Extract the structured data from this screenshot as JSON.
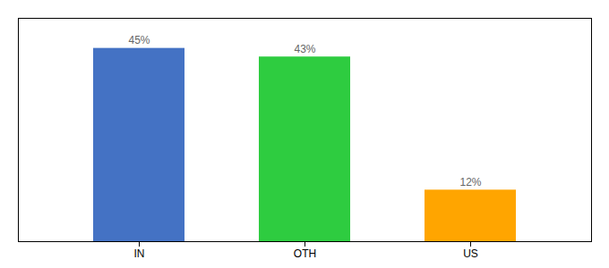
{
  "chart_data": {
    "type": "bar",
    "categories": [
      "IN",
      "OTH",
      "US"
    ],
    "values": [
      45,
      43,
      12
    ],
    "colors": [
      "#4472C4",
      "#2ECC40",
      "#FFA500"
    ],
    "data_labels": true,
    "value_labels": [
      "45%",
      "43%",
      "12%"
    ],
    "ylim": [
      0,
      52
    ],
    "tick_labels": "x"
  }
}
